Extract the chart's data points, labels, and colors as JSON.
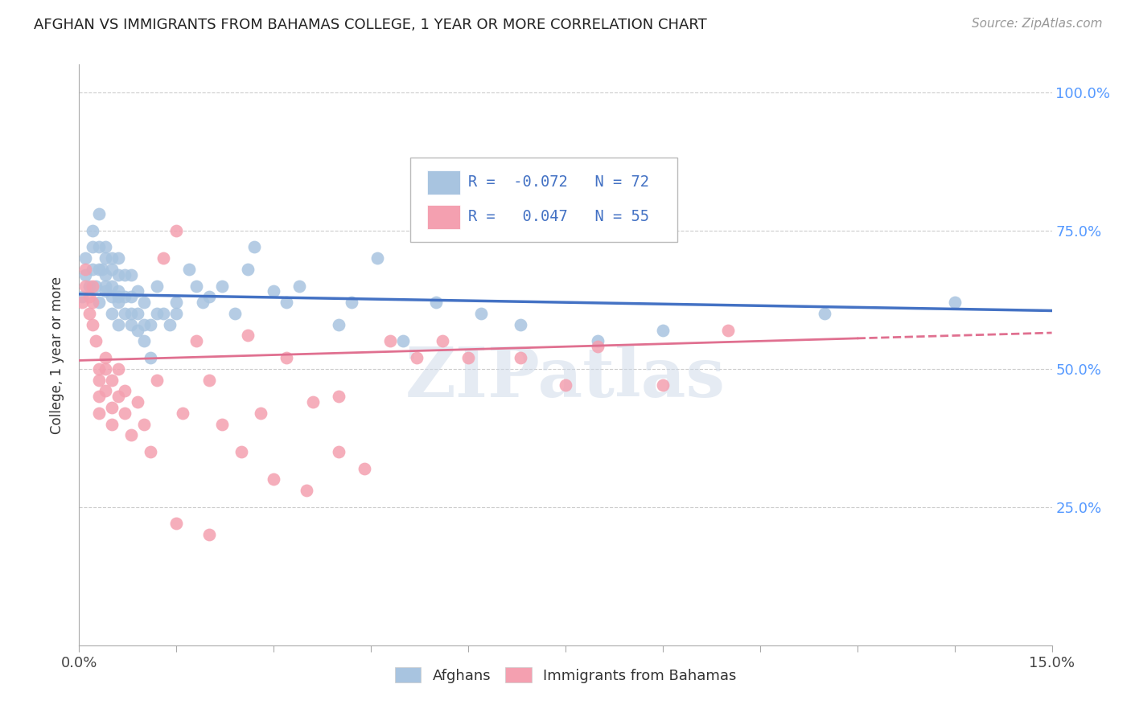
{
  "title": "AFGHAN VS IMMIGRANTS FROM BAHAMAS COLLEGE, 1 YEAR OR MORE CORRELATION CHART",
  "source": "Source: ZipAtlas.com",
  "ylabel": "College, 1 year or more",
  "xmin": 0.0,
  "xmax": 0.15,
  "ymin": 0.0,
  "ymax": 1.05,
  "right_ytick_vals": [
    0.25,
    0.5,
    0.75,
    1.0
  ],
  "right_yticklabels": [
    "25.0%",
    "50.0%",
    "75.0%",
    "100.0%"
  ],
  "grid_lines": [
    0.25,
    0.5,
    0.75,
    1.0
  ],
  "legend_labels": [
    "Afghans",
    "Immigrants from Bahamas"
  ],
  "afghans_color": "#a8c4e0",
  "bahamas_color": "#f4a0b0",
  "afghans_line_color": "#4472c4",
  "bahamas_line_color": "#e07090",
  "R_afghan": -0.072,
  "N_afghan": 72,
  "R_bahamas": 0.047,
  "N_bahamas": 55,
  "legend_text_color": "#4472c4",
  "watermark": "ZIPatlas",
  "afghans_x": [
    0.0005,
    0.001,
    0.001,
    0.0015,
    0.002,
    0.002,
    0.002,
    0.0025,
    0.003,
    0.003,
    0.003,
    0.003,
    0.0035,
    0.004,
    0.004,
    0.004,
    0.004,
    0.004,
    0.005,
    0.005,
    0.005,
    0.005,
    0.005,
    0.006,
    0.006,
    0.006,
    0.006,
    0.006,
    0.006,
    0.007,
    0.007,
    0.007,
    0.008,
    0.008,
    0.008,
    0.008,
    0.009,
    0.009,
    0.009,
    0.01,
    0.01,
    0.01,
    0.011,
    0.011,
    0.012,
    0.012,
    0.013,
    0.014,
    0.015,
    0.015,
    0.017,
    0.018,
    0.019,
    0.02,
    0.022,
    0.024,
    0.026,
    0.027,
    0.03,
    0.032,
    0.034,
    0.04,
    0.042,
    0.046,
    0.05,
    0.055,
    0.062,
    0.068,
    0.08,
    0.09,
    0.115,
    0.135
  ],
  "afghans_y": [
    0.63,
    0.67,
    0.7,
    0.65,
    0.68,
    0.72,
    0.75,
    0.65,
    0.62,
    0.68,
    0.72,
    0.78,
    0.68,
    0.64,
    0.67,
    0.7,
    0.72,
    0.65,
    0.6,
    0.63,
    0.65,
    0.68,
    0.7,
    0.58,
    0.62,
    0.64,
    0.67,
    0.7,
    0.63,
    0.6,
    0.63,
    0.67,
    0.58,
    0.6,
    0.63,
    0.67,
    0.57,
    0.6,
    0.64,
    0.55,
    0.58,
    0.62,
    0.52,
    0.58,
    0.6,
    0.65,
    0.6,
    0.58,
    0.6,
    0.62,
    0.68,
    0.65,
    0.62,
    0.63,
    0.65,
    0.6,
    0.68,
    0.72,
    0.64,
    0.62,
    0.65,
    0.58,
    0.62,
    0.7,
    0.55,
    0.62,
    0.6,
    0.58,
    0.55,
    0.57,
    0.6,
    0.62
  ],
  "bahamas_x": [
    0.0005,
    0.001,
    0.001,
    0.0015,
    0.0015,
    0.002,
    0.002,
    0.002,
    0.0025,
    0.003,
    0.003,
    0.003,
    0.003,
    0.004,
    0.004,
    0.004,
    0.005,
    0.005,
    0.005,
    0.006,
    0.006,
    0.007,
    0.007,
    0.008,
    0.009,
    0.01,
    0.011,
    0.012,
    0.013,
    0.015,
    0.016,
    0.018,
    0.02,
    0.022,
    0.025,
    0.026,
    0.028,
    0.032,
    0.036,
    0.04,
    0.044,
    0.048,
    0.052,
    0.056,
    0.06,
    0.068,
    0.075,
    0.08,
    0.09,
    0.1,
    0.03,
    0.035,
    0.04,
    0.02,
    0.015
  ],
  "bahamas_y": [
    0.62,
    0.65,
    0.68,
    0.6,
    0.63,
    0.58,
    0.62,
    0.65,
    0.55,
    0.5,
    0.45,
    0.42,
    0.48,
    0.52,
    0.46,
    0.5,
    0.43,
    0.48,
    0.4,
    0.45,
    0.5,
    0.46,
    0.42,
    0.38,
    0.44,
    0.4,
    0.35,
    0.48,
    0.7,
    0.75,
    0.42,
    0.55,
    0.48,
    0.4,
    0.35,
    0.56,
    0.42,
    0.52,
    0.44,
    0.35,
    0.32,
    0.55,
    0.52,
    0.55,
    0.52,
    0.52,
    0.47,
    0.54,
    0.47,
    0.57,
    0.3,
    0.28,
    0.45,
    0.2,
    0.22
  ],
  "blue_line_x0": 0.0,
  "blue_line_y0": 0.635,
  "blue_line_x1": 0.15,
  "blue_line_y1": 0.605,
  "pink_line_x0": 0.0,
  "pink_line_y0": 0.515,
  "pink_line_x1": 0.15,
  "pink_line_y1": 0.565
}
